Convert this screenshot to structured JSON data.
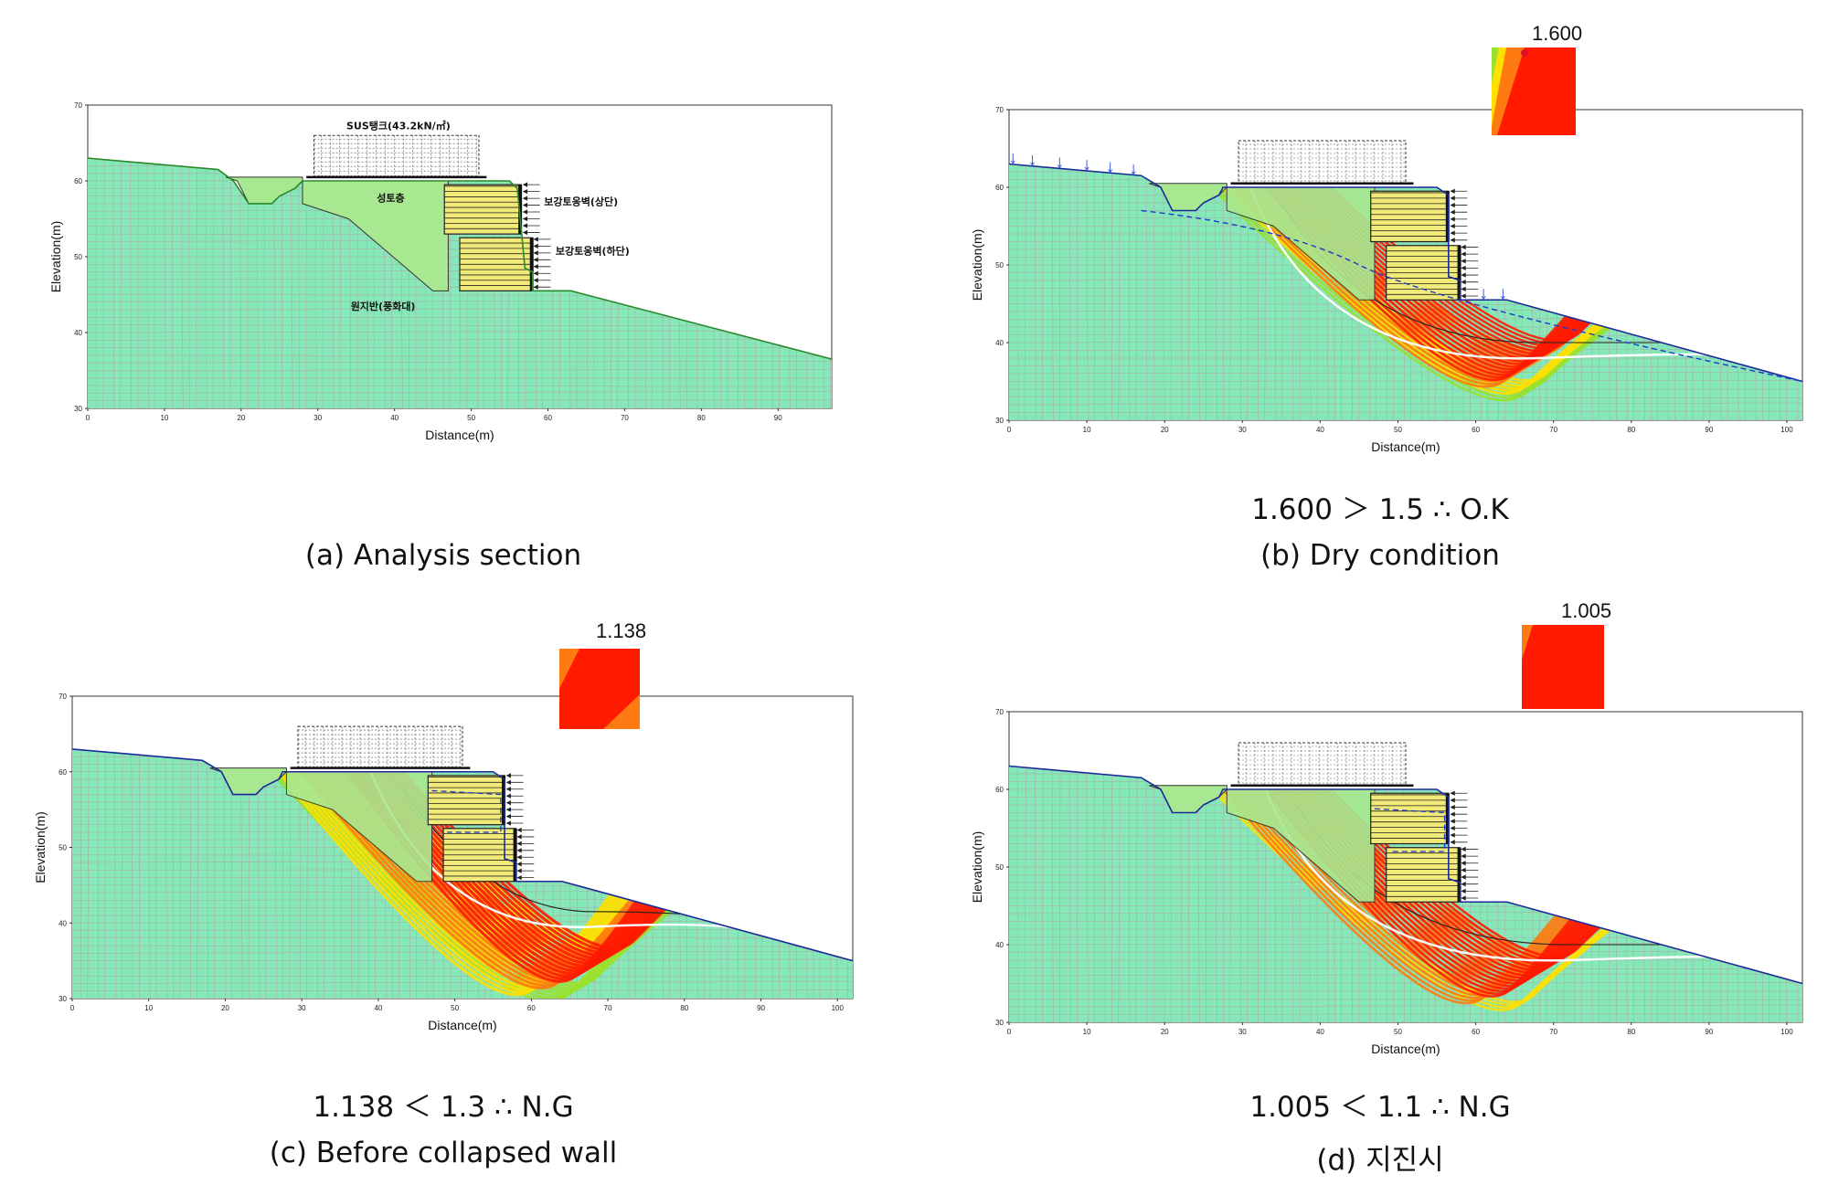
{
  "panels": [
    {
      "id": "a",
      "caption": "(a) Analysis section",
      "result": "",
      "xlabel": "Distance(m)",
      "ylabel": "Elevation(m)",
      "xticks": [
        "0",
        "10",
        "20",
        "30",
        "40",
        "50",
        "60",
        "70",
        "80",
        "90"
      ],
      "yticks": [
        "30",
        "40",
        "50",
        "60",
        "70"
      ],
      "labels": {
        "tank": "SUS탱크(43.2kN/㎡)",
        "fill": "성토층",
        "wall_upper": "보강토옹벽(상단)",
        "wall_lower": "보강토옹벽(하단)",
        "ground": "원지반(풍화대)"
      }
    },
    {
      "id": "b",
      "caption": "(b) Dry condition",
      "result": "1.600 ＞ 1.5 ∴ O.K",
      "fs": "1.600",
      "xlabel": "Distance(m)",
      "ylabel": "Elevation(m)",
      "xticks": [
        "0",
        "10",
        "20",
        "30",
        "40",
        "50",
        "60",
        "70",
        "80",
        "90",
        "100"
      ],
      "yticks": [
        "30",
        "40",
        "50",
        "60",
        "70"
      ]
    },
    {
      "id": "c",
      "caption": "(c) Before collapsed wall",
      "result": "1.138 ＜ 1.3 ∴ N.G",
      "fs": "1.138",
      "xlabel": "Distance(m)",
      "ylabel": "Elevation(m)",
      "xticks": [
        "0",
        "10",
        "20",
        "30",
        "40",
        "50",
        "60",
        "70",
        "80",
        "90",
        "100"
      ],
      "yticks": [
        "30",
        "40",
        "50",
        "60",
        "70"
      ]
    },
    {
      "id": "d",
      "caption": "(d) 지진시",
      "result": "1.005 ＜ 1.1 ∴ N.G",
      "fs": "1.005",
      "xlabel": "Distance(m)",
      "ylabel": "Elevation(m)",
      "xticks": [
        "0",
        "10",
        "20",
        "30",
        "40",
        "50",
        "60",
        "70",
        "80",
        "90",
        "100"
      ],
      "yticks": [
        "30",
        "40",
        "50",
        "60",
        "70"
      ]
    }
  ],
  "colors": {
    "soil": "#86e8b8",
    "fill_soil": "#a8e890",
    "mesh": "#c08a9a",
    "wall": "#f2ea78",
    "red": "#ff1a00",
    "orange": "#ff7a10",
    "yellow": "#ffe000",
    "green": "#9ae030",
    "surface_b": "#1a2a9a",
    "surface_a": "#2a8a2a"
  }
}
